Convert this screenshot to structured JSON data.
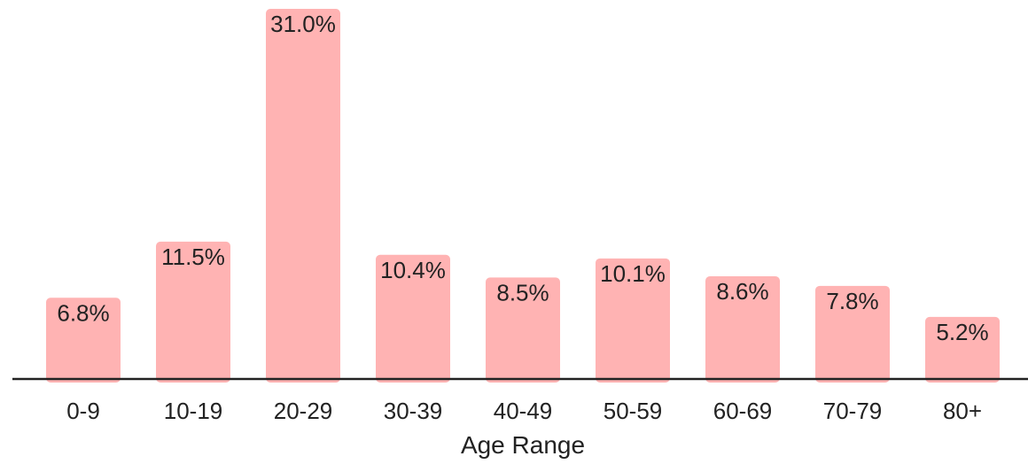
{
  "chart_data": {
    "type": "bar",
    "title": "",
    "xlabel": "Age Range",
    "ylabel": "",
    "categories": [
      "0-9",
      "10-19",
      "20-29",
      "30-39",
      "40-49",
      "50-59",
      "60-69",
      "70-79",
      "80+"
    ],
    "values": [
      6.8,
      11.5,
      31.0,
      10.4,
      8.5,
      10.1,
      8.6,
      7.8,
      5.2
    ],
    "value_labels": [
      "6.8%",
      "11.5%",
      "31.0%",
      "10.4%",
      "8.5%",
      "10.1%",
      "8.6%",
      "7.8%",
      "5.2%"
    ],
    "ylim": [
      0,
      31.0
    ],
    "grid": false,
    "legend": "none",
    "bar_color": "#ffb3b3",
    "axis_color": "#222222"
  }
}
